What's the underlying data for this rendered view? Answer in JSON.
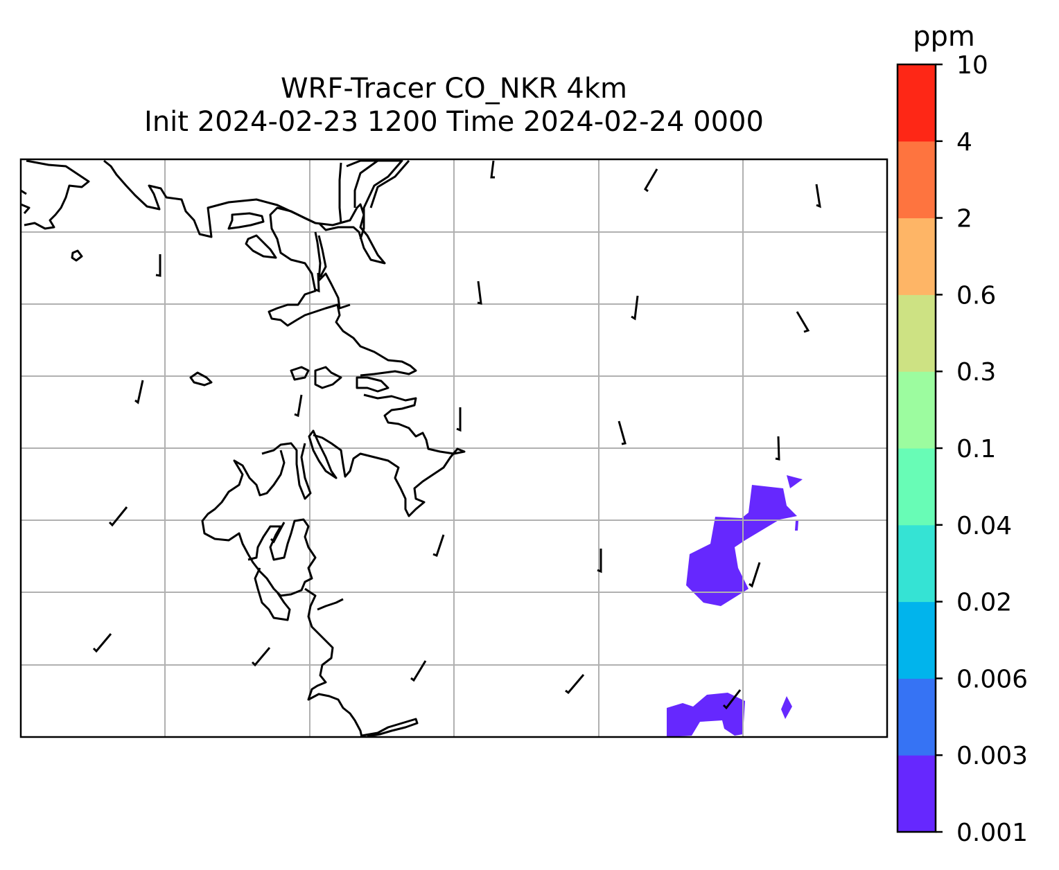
{
  "title": {
    "line1": "WRF-Tracer CO_NKR 4km",
    "line2": "Init 2024-02-23 1200 Time 2024-02-24 0000"
  },
  "colorbar": {
    "unit": "ppm",
    "levels": [
      "0.001",
      "0.003",
      "0.006",
      "0.02",
      "0.04",
      "0.1",
      "0.3",
      "0.6",
      "2",
      "4",
      "10"
    ],
    "colors": [
      "#6628fe",
      "#3673f4",
      "#01b4ec",
      "#35e3d4",
      "#68fcb6",
      "#9cfc9f",
      "#cde283",
      "#feb566",
      "#fe743f",
      "#fe2716"
    ]
  },
  "map": {
    "grid_color": "#b0b0b0",
    "coastline_color": "#000000",
    "plume_level_index": 0
  }
}
